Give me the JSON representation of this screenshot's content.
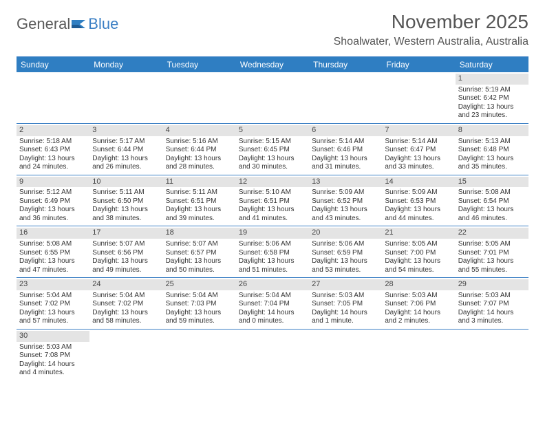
{
  "brand": {
    "part1": "General",
    "part2": "Blue"
  },
  "title": "November 2025",
  "location": "Shoalwater, Western Australia, Australia",
  "colors": {
    "header_bg": "#2f7ec2",
    "accent": "#3b7fc4",
    "daynum_bg": "#e4e4e4",
    "text": "#333333",
    "title_text": "#555555"
  },
  "day_names": [
    "Sunday",
    "Monday",
    "Tuesday",
    "Wednesday",
    "Thursday",
    "Friday",
    "Saturday"
  ],
  "weeks": [
    [
      {
        "n": "",
        "empty": true
      },
      {
        "n": "",
        "empty": true
      },
      {
        "n": "",
        "empty": true
      },
      {
        "n": "",
        "empty": true
      },
      {
        "n": "",
        "empty": true
      },
      {
        "n": "",
        "empty": true
      },
      {
        "n": "1",
        "sr": "Sunrise: 5:19 AM",
        "ss": "Sunset: 6:42 PM",
        "dl": "Daylight: 13 hours and 23 minutes."
      }
    ],
    [
      {
        "n": "2",
        "sr": "Sunrise: 5:18 AM",
        "ss": "Sunset: 6:43 PM",
        "dl": "Daylight: 13 hours and 24 minutes."
      },
      {
        "n": "3",
        "sr": "Sunrise: 5:17 AM",
        "ss": "Sunset: 6:44 PM",
        "dl": "Daylight: 13 hours and 26 minutes."
      },
      {
        "n": "4",
        "sr": "Sunrise: 5:16 AM",
        "ss": "Sunset: 6:44 PM",
        "dl": "Daylight: 13 hours and 28 minutes."
      },
      {
        "n": "5",
        "sr": "Sunrise: 5:15 AM",
        "ss": "Sunset: 6:45 PM",
        "dl": "Daylight: 13 hours and 30 minutes."
      },
      {
        "n": "6",
        "sr": "Sunrise: 5:14 AM",
        "ss": "Sunset: 6:46 PM",
        "dl": "Daylight: 13 hours and 31 minutes."
      },
      {
        "n": "7",
        "sr": "Sunrise: 5:14 AM",
        "ss": "Sunset: 6:47 PM",
        "dl": "Daylight: 13 hours and 33 minutes."
      },
      {
        "n": "8",
        "sr": "Sunrise: 5:13 AM",
        "ss": "Sunset: 6:48 PM",
        "dl": "Daylight: 13 hours and 35 minutes."
      }
    ],
    [
      {
        "n": "9",
        "sr": "Sunrise: 5:12 AM",
        "ss": "Sunset: 6:49 PM",
        "dl": "Daylight: 13 hours and 36 minutes."
      },
      {
        "n": "10",
        "sr": "Sunrise: 5:11 AM",
        "ss": "Sunset: 6:50 PM",
        "dl": "Daylight: 13 hours and 38 minutes."
      },
      {
        "n": "11",
        "sr": "Sunrise: 5:11 AM",
        "ss": "Sunset: 6:51 PM",
        "dl": "Daylight: 13 hours and 39 minutes."
      },
      {
        "n": "12",
        "sr": "Sunrise: 5:10 AM",
        "ss": "Sunset: 6:51 PM",
        "dl": "Daylight: 13 hours and 41 minutes."
      },
      {
        "n": "13",
        "sr": "Sunrise: 5:09 AM",
        "ss": "Sunset: 6:52 PM",
        "dl": "Daylight: 13 hours and 43 minutes."
      },
      {
        "n": "14",
        "sr": "Sunrise: 5:09 AM",
        "ss": "Sunset: 6:53 PM",
        "dl": "Daylight: 13 hours and 44 minutes."
      },
      {
        "n": "15",
        "sr": "Sunrise: 5:08 AM",
        "ss": "Sunset: 6:54 PM",
        "dl": "Daylight: 13 hours and 46 minutes."
      }
    ],
    [
      {
        "n": "16",
        "sr": "Sunrise: 5:08 AM",
        "ss": "Sunset: 6:55 PM",
        "dl": "Daylight: 13 hours and 47 minutes."
      },
      {
        "n": "17",
        "sr": "Sunrise: 5:07 AM",
        "ss": "Sunset: 6:56 PM",
        "dl": "Daylight: 13 hours and 49 minutes."
      },
      {
        "n": "18",
        "sr": "Sunrise: 5:07 AM",
        "ss": "Sunset: 6:57 PM",
        "dl": "Daylight: 13 hours and 50 minutes."
      },
      {
        "n": "19",
        "sr": "Sunrise: 5:06 AM",
        "ss": "Sunset: 6:58 PM",
        "dl": "Daylight: 13 hours and 51 minutes."
      },
      {
        "n": "20",
        "sr": "Sunrise: 5:06 AM",
        "ss": "Sunset: 6:59 PM",
        "dl": "Daylight: 13 hours and 53 minutes."
      },
      {
        "n": "21",
        "sr": "Sunrise: 5:05 AM",
        "ss": "Sunset: 7:00 PM",
        "dl": "Daylight: 13 hours and 54 minutes."
      },
      {
        "n": "22",
        "sr": "Sunrise: 5:05 AM",
        "ss": "Sunset: 7:01 PM",
        "dl": "Daylight: 13 hours and 55 minutes."
      }
    ],
    [
      {
        "n": "23",
        "sr": "Sunrise: 5:04 AM",
        "ss": "Sunset: 7:02 PM",
        "dl": "Daylight: 13 hours and 57 minutes."
      },
      {
        "n": "24",
        "sr": "Sunrise: 5:04 AM",
        "ss": "Sunset: 7:02 PM",
        "dl": "Daylight: 13 hours and 58 minutes."
      },
      {
        "n": "25",
        "sr": "Sunrise: 5:04 AM",
        "ss": "Sunset: 7:03 PM",
        "dl": "Daylight: 13 hours and 59 minutes."
      },
      {
        "n": "26",
        "sr": "Sunrise: 5:04 AM",
        "ss": "Sunset: 7:04 PM",
        "dl": "Daylight: 14 hours and 0 minutes."
      },
      {
        "n": "27",
        "sr": "Sunrise: 5:03 AM",
        "ss": "Sunset: 7:05 PM",
        "dl": "Daylight: 14 hours and 1 minute."
      },
      {
        "n": "28",
        "sr": "Sunrise: 5:03 AM",
        "ss": "Sunset: 7:06 PM",
        "dl": "Daylight: 14 hours and 2 minutes."
      },
      {
        "n": "29",
        "sr": "Sunrise: 5:03 AM",
        "ss": "Sunset: 7:07 PM",
        "dl": "Daylight: 14 hours and 3 minutes."
      }
    ],
    [
      {
        "n": "30",
        "sr": "Sunrise: 5:03 AM",
        "ss": "Sunset: 7:08 PM",
        "dl": "Daylight: 14 hours and 4 minutes."
      },
      {
        "n": "",
        "empty": true
      },
      {
        "n": "",
        "empty": true
      },
      {
        "n": "",
        "empty": true
      },
      {
        "n": "",
        "empty": true
      },
      {
        "n": "",
        "empty": true
      },
      {
        "n": "",
        "empty": true
      }
    ]
  ]
}
